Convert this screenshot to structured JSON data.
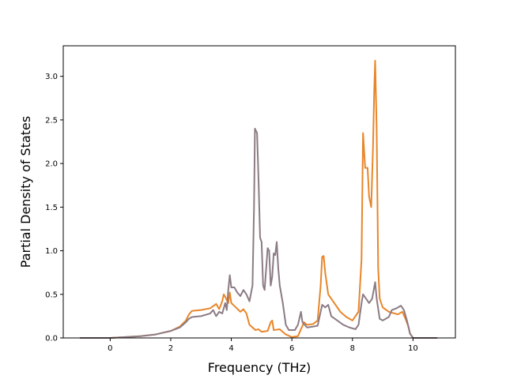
{
  "chart_data": {
    "type": "line",
    "title": "",
    "xlabel": "Frequency (THz)",
    "ylabel": "Partial Density of States",
    "xlim": [
      -1.55,
      11.4
    ],
    "ylim": [
      0.0,
      3.35
    ],
    "xticks": [
      0,
      2,
      4,
      6,
      8,
      10
    ],
    "xtick_labels": [
      "0",
      "2",
      "4",
      "6",
      "8",
      "10"
    ],
    "yticks": [
      0.0,
      0.5,
      1.0,
      1.5,
      2.0,
      2.5,
      3.0
    ],
    "ytick_labels": [
      "0.0",
      "0.5",
      "1.0",
      "1.5",
      "2.0",
      "2.5",
      "3.0"
    ],
    "grid": false,
    "legend": "none",
    "series": [
      {
        "color": "#e8862a",
        "points": [
          [
            -1.0,
            0.0
          ],
          [
            0.0,
            0.0
          ],
          [
            0.5,
            0.01
          ],
          [
            1.0,
            0.02
          ],
          [
            1.5,
            0.04
          ],
          [
            2.0,
            0.08
          ],
          [
            2.3,
            0.13
          ],
          [
            2.5,
            0.2
          ],
          [
            2.6,
            0.27
          ],
          [
            2.7,
            0.31
          ],
          [
            3.0,
            0.32
          ],
          [
            3.3,
            0.34
          ],
          [
            3.5,
            0.39
          ],
          [
            3.6,
            0.33
          ],
          [
            3.7,
            0.42
          ],
          [
            3.75,
            0.5
          ],
          [
            3.8,
            0.47
          ],
          [
            3.9,
            0.4
          ],
          [
            3.95,
            0.52
          ],
          [
            4.0,
            0.4
          ],
          [
            4.15,
            0.35
          ],
          [
            4.3,
            0.3
          ],
          [
            4.4,
            0.33
          ],
          [
            4.5,
            0.28
          ],
          [
            4.6,
            0.15
          ],
          [
            4.8,
            0.09
          ],
          [
            4.9,
            0.1
          ],
          [
            5.0,
            0.07
          ],
          [
            5.2,
            0.08
          ],
          [
            5.3,
            0.18
          ],
          [
            5.35,
            0.2
          ],
          [
            5.4,
            0.09
          ],
          [
            5.6,
            0.1
          ],
          [
            5.8,
            0.04
          ],
          [
            6.0,
            0.01
          ],
          [
            6.2,
            0.02
          ],
          [
            6.3,
            0.1
          ],
          [
            6.4,
            0.18
          ],
          [
            6.5,
            0.15
          ],
          [
            6.7,
            0.16
          ],
          [
            6.85,
            0.2
          ],
          [
            6.95,
            0.6
          ],
          [
            7.0,
            0.93
          ],
          [
            7.05,
            0.94
          ],
          [
            7.1,
            0.75
          ],
          [
            7.2,
            0.5
          ],
          [
            7.4,
            0.4
          ],
          [
            7.6,
            0.3
          ],
          [
            7.8,
            0.24
          ],
          [
            8.0,
            0.2
          ],
          [
            8.2,
            0.3
          ],
          [
            8.3,
            0.9
          ],
          [
            8.35,
            2.35
          ],
          [
            8.42,
            1.95
          ],
          [
            8.5,
            1.95
          ],
          [
            8.55,
            1.62
          ],
          [
            8.62,
            1.5
          ],
          [
            8.68,
            2.2
          ],
          [
            8.72,
            2.85
          ],
          [
            8.75,
            3.18
          ],
          [
            8.8,
            2.4
          ],
          [
            8.85,
            0.8
          ],
          [
            8.9,
            0.45
          ],
          [
            9.0,
            0.35
          ],
          [
            9.2,
            0.3
          ],
          [
            9.5,
            0.27
          ],
          [
            9.65,
            0.3
          ],
          [
            9.75,
            0.22
          ],
          [
            9.85,
            0.13
          ],
          [
            9.9,
            0.05
          ],
          [
            10.0,
            0.0
          ],
          [
            10.8,
            0.0
          ]
        ]
      },
      {
        "color": "#8c7b84",
        "points": [
          [
            -1.0,
            0.0
          ],
          [
            0.0,
            0.0
          ],
          [
            0.5,
            0.01
          ],
          [
            1.0,
            0.02
          ],
          [
            1.5,
            0.04
          ],
          [
            2.0,
            0.08
          ],
          [
            2.3,
            0.12
          ],
          [
            2.5,
            0.18
          ],
          [
            2.6,
            0.22
          ],
          [
            2.7,
            0.24
          ],
          [
            3.0,
            0.25
          ],
          [
            3.3,
            0.28
          ],
          [
            3.4,
            0.32
          ],
          [
            3.5,
            0.25
          ],
          [
            3.6,
            0.3
          ],
          [
            3.7,
            0.28
          ],
          [
            3.8,
            0.4
          ],
          [
            3.85,
            0.32
          ],
          [
            3.9,
            0.55
          ],
          [
            3.95,
            0.72
          ],
          [
            4.0,
            0.58
          ],
          [
            4.1,
            0.58
          ],
          [
            4.2,
            0.52
          ],
          [
            4.3,
            0.48
          ],
          [
            4.4,
            0.55
          ],
          [
            4.5,
            0.5
          ],
          [
            4.6,
            0.42
          ],
          [
            4.7,
            0.6
          ],
          [
            4.75,
            1.5
          ],
          [
            4.78,
            2.4
          ],
          [
            4.85,
            2.35
          ],
          [
            4.9,
            1.8
          ],
          [
            4.95,
            1.15
          ],
          [
            5.0,
            1.1
          ],
          [
            5.05,
            0.6
          ],
          [
            5.1,
            0.55
          ],
          [
            5.2,
            1.03
          ],
          [
            5.25,
            1.0
          ],
          [
            5.3,
            0.6
          ],
          [
            5.35,
            0.7
          ],
          [
            5.4,
            0.97
          ],
          [
            5.45,
            0.95
          ],
          [
            5.5,
            1.1
          ],
          [
            5.55,
            0.8
          ],
          [
            5.6,
            0.6
          ],
          [
            5.7,
            0.4
          ],
          [
            5.8,
            0.15
          ],
          [
            5.9,
            0.09
          ],
          [
            6.1,
            0.09
          ],
          [
            6.2,
            0.15
          ],
          [
            6.3,
            0.3
          ],
          [
            6.35,
            0.18
          ],
          [
            6.5,
            0.12
          ],
          [
            6.7,
            0.13
          ],
          [
            6.85,
            0.14
          ],
          [
            6.95,
            0.3
          ],
          [
            7.0,
            0.38
          ],
          [
            7.1,
            0.35
          ],
          [
            7.2,
            0.38
          ],
          [
            7.3,
            0.25
          ],
          [
            7.5,
            0.2
          ],
          [
            7.7,
            0.15
          ],
          [
            7.9,
            0.12
          ],
          [
            8.1,
            0.1
          ],
          [
            8.2,
            0.15
          ],
          [
            8.3,
            0.4
          ],
          [
            8.35,
            0.5
          ],
          [
            8.45,
            0.45
          ],
          [
            8.55,
            0.4
          ],
          [
            8.65,
            0.45
          ],
          [
            8.75,
            0.64
          ],
          [
            8.8,
            0.45
          ],
          [
            8.9,
            0.22
          ],
          [
            9.0,
            0.2
          ],
          [
            9.2,
            0.24
          ],
          [
            9.3,
            0.32
          ],
          [
            9.45,
            0.34
          ],
          [
            9.6,
            0.37
          ],
          [
            9.7,
            0.32
          ],
          [
            9.8,
            0.2
          ],
          [
            9.9,
            0.05
          ],
          [
            10.0,
            0.0
          ],
          [
            10.8,
            0.0
          ]
        ]
      }
    ]
  }
}
